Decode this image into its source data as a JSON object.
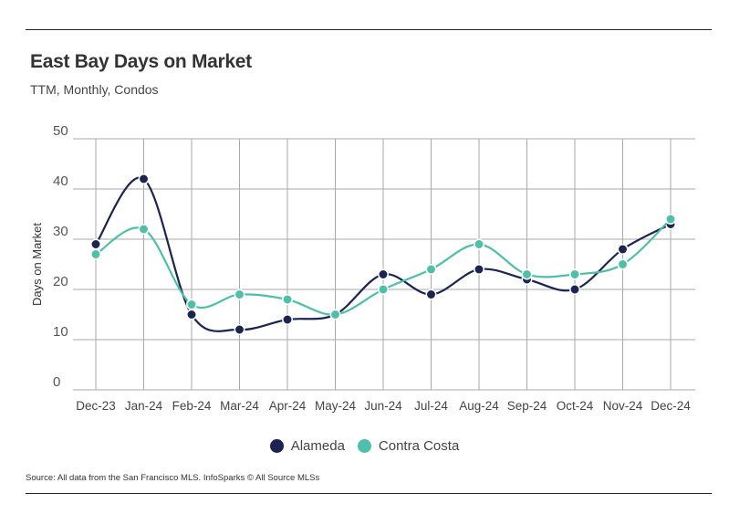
{
  "chart_data": {
    "type": "line",
    "title": "East Bay Days on Market",
    "subtitle": "TTM, Monthly, Condos",
    "xlabel": "",
    "ylabel": "Days on Market",
    "ylim": [
      0,
      50
    ],
    "yticks": [
      0,
      10,
      20,
      30,
      40,
      50
    ],
    "grid": true,
    "legend_placement": "bottom",
    "categories": [
      "Dec-23",
      "Jan-24",
      "Feb-24",
      "Mar-24",
      "Apr-24",
      "May-24",
      "Jun-24",
      "Jul-24",
      "Aug-24",
      "Sep-24",
      "Oct-24",
      "Nov-24",
      "Dec-24"
    ],
    "series": [
      {
        "name": "Alameda",
        "color": "#1c2452",
        "values": [
          29,
          42,
          15,
          12,
          14,
          15,
          23,
          19,
          24,
          22,
          20,
          28,
          33
        ]
      },
      {
        "name": "Contra Costa",
        "color": "#4fbfa8",
        "values": [
          27,
          32,
          17,
          19,
          18,
          15,
          20,
          24,
          29,
          23,
          23,
          25,
          34
        ]
      }
    ]
  },
  "source": "Source:  All data from the San Francisco MLS. InfoSparks © All Source MLSs"
}
